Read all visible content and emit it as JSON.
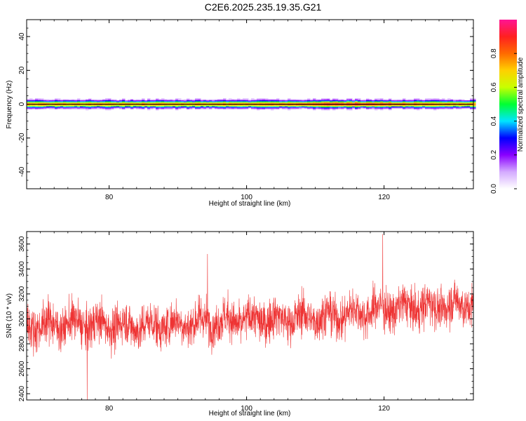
{
  "title": "C2E6.2025.235.19.35.G21",
  "chart_data": [
    {
      "type": "heatmap",
      "xlabel": "Height of straight line (km)",
      "ylabel": "Frequency (Hz)",
      "xlim": [
        68,
        133
      ],
      "ylim": [
        -50,
        50
      ],
      "xticks": [
        80,
        100,
        120
      ],
      "yticks": [
        -40,
        -20,
        0,
        20,
        40
      ],
      "frequency_band_hz": [
        -4,
        4
      ],
      "peak_frequency_hz": 0,
      "colorbar": {
        "label": "Normalized spectral amplitude",
        "range": [
          0,
          1
        ],
        "ticks": [
          "0.0",
          "0.2",
          "0.4",
          "0.6",
          "0.8"
        ],
        "colors": [
          "#ffffff",
          "#d4aaff",
          "#8a00ff",
          "#0000ff",
          "#00e5ff",
          "#00ff33",
          "#c8ff00",
          "#ffd000",
          "#ff6a00",
          "#ff2020",
          "#ff1493"
        ]
      }
    },
    {
      "type": "line",
      "xlabel": "Height of straight line (km)",
      "ylabel": "SNR (10 * v/v)",
      "xlim": [
        68,
        133
      ],
      "ylim": [
        2350,
        3700
      ],
      "xticks": [
        80,
        100,
        120
      ],
      "yticks": [
        2400,
        2600,
        2800,
        3000,
        3200,
        3400,
        3600
      ],
      "color": "#ee3333",
      "trend": {
        "x": [
          68,
          75,
          85,
          95,
          105,
          112,
          120,
          133
        ],
        "mean": [
          2950,
          2960,
          2940,
          2980,
          3000,
          3020,
          3080,
          3120
        ]
      },
      "notable_points": [
        {
          "x": 76.8,
          "y": 2350
        },
        {
          "x": 94.3,
          "y": 3520
        },
        {
          "x": 119.8,
          "y": 3680
        }
      ]
    }
  ]
}
